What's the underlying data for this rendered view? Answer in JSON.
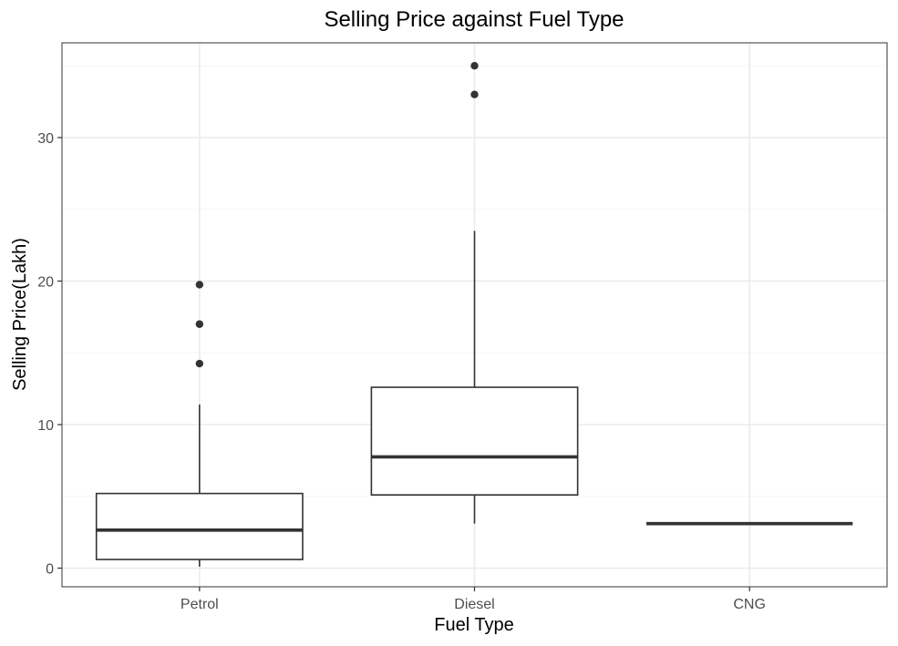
{
  "chart_data": {
    "type": "box",
    "title": "Selling Price against Fuel Type",
    "xlabel": "Fuel Type",
    "ylabel": "Selling Price(Lakh)",
    "categories": [
      "Petrol",
      "Diesel",
      "CNG"
    ],
    "ylim": [
      -1.3,
      36.6
    ],
    "yticks": [
      0,
      10,
      20,
      30
    ],
    "ytick_labels": [
      "0",
      "10",
      "20",
      "30"
    ],
    "grid": true,
    "boxes": [
      {
        "category": "Petrol",
        "whisker_low": 0.1,
        "q1": 0.6,
        "median": 2.65,
        "q3": 5.2,
        "whisker_high": 11.4,
        "outliers": [
          14.25,
          17.0,
          19.75
        ]
      },
      {
        "category": "Diesel",
        "whisker_low": 3.1,
        "q1": 5.1,
        "median": 7.75,
        "q3": 12.6,
        "whisker_high": 23.5,
        "outliers": [
          33.0,
          35.0
        ]
      },
      {
        "category": "CNG",
        "whisker_low": 3.1,
        "q1": 3.1,
        "median": 3.1,
        "q3": 3.1,
        "whisker_high": 3.1,
        "outliers": []
      }
    ],
    "colors": {
      "box_line": "#333333",
      "outlier": "#333333",
      "grid_major": "#ebebeb",
      "grid_minor": "#f5f5f5",
      "panel_border": "#333333",
      "tick_label": "#4d4d4d"
    }
  }
}
